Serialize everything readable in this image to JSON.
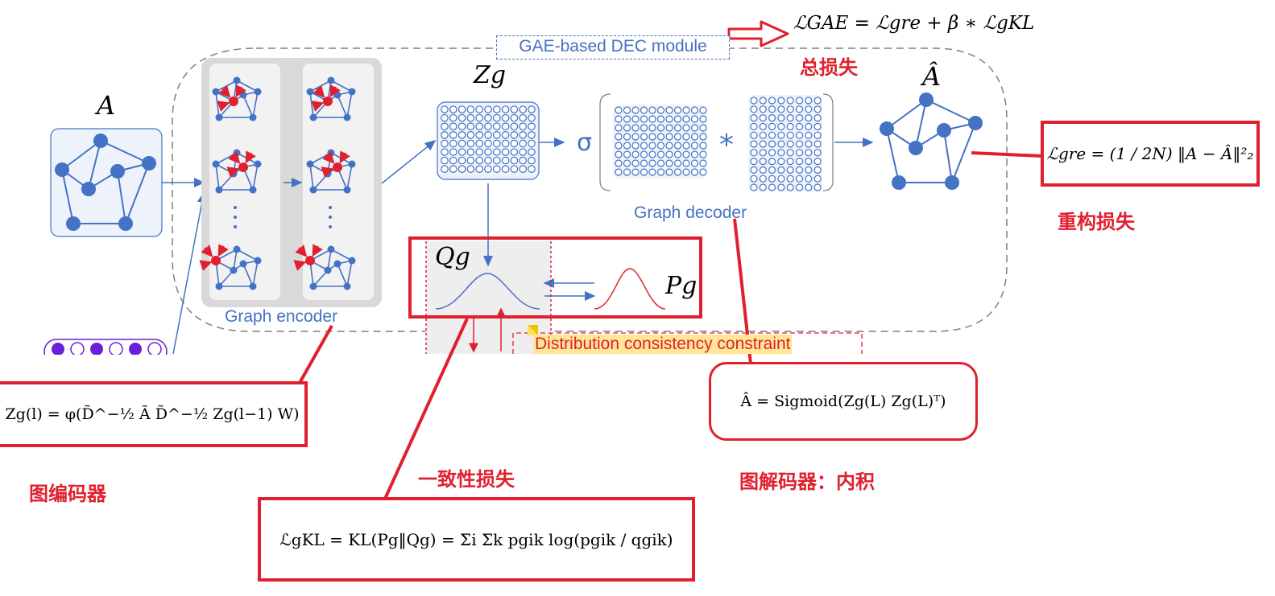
{
  "labels": {
    "adjacency": "A",
    "reconstructed": "Â",
    "zg": "Zg",
    "qg": "Qg",
    "pg": "Pg",
    "sigma": "σ",
    "star": "*"
  },
  "module": {
    "title": "GAE-based DEC module"
  },
  "encoder": {
    "label": "Graph encoder"
  },
  "decoder": {
    "label": "Graph decoder"
  },
  "constraint": {
    "label": "Distribution consistency constraint"
  },
  "formulas": {
    "total_loss": "ℒGAE = ℒgre + β ∗ ℒgKL",
    "recon_loss": "ℒgre = (1 / 2N) ‖A − Â‖²₂",
    "encoder": "Zg(l) = φ(D̃^−½ Ã D̃^−½ Zg(l−1) W)",
    "decoder": "Â = Sigmoid(Zg(L) Zg(L)ᵀ)",
    "kl_loss": "ℒgKL = KL(Pg‖Qg) = Σi Σk pgik log(pgik / qgik)"
  },
  "annotations": {
    "total_loss": "总损失",
    "recon_loss": "重构损失",
    "encoder": "图编码器",
    "consistency": "一致性损失",
    "decoder": "图解码器：内积"
  },
  "colors": {
    "blue": "#4472c4",
    "node": "#4472c4",
    "red": "#e0202e",
    "purple": "#6a1fd8"
  }
}
